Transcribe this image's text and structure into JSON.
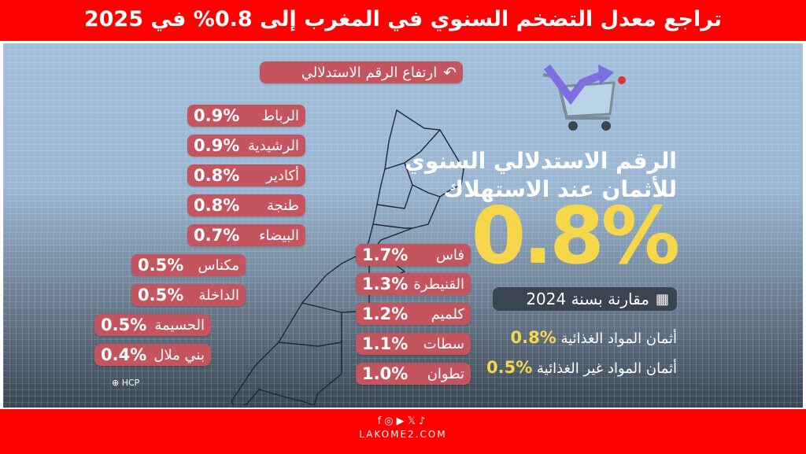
{
  "header": {
    "title": "تراجع معدل التضخم السنوي في المغرب إلى 0.8% في 2025"
  },
  "rise_label": "ارتفاع الرقم الاستدلالي",
  "cities_left": [
    {
      "name": "الرباط",
      "value": "0.9%"
    },
    {
      "name": "الرشيدية",
      "value": "0.9%"
    },
    {
      "name": "أكادير",
      "value": "0.8%"
    },
    {
      "name": "طنجة",
      "value": "0.8%"
    },
    {
      "name": "البيضاء",
      "value": "0.7%"
    },
    {
      "name": "مكناس",
      "value": "0.5%"
    },
    {
      "name": "الداخلة",
      "value": "0.5%"
    },
    {
      "name": "الحسيمة",
      "value": "0.5%"
    },
    {
      "name": "بني ملال",
      "value": "0.4%"
    }
  ],
  "cities_right": [
    {
      "name": "فاس",
      "value": "1.7%"
    },
    {
      "name": "القنيطرة",
      "value": "1.3%"
    },
    {
      "name": "كلميم",
      "value": "1.2%"
    },
    {
      "name": "سطات",
      "value": "1.1%"
    },
    {
      "name": "تطوان",
      "value": "1.0%"
    }
  ],
  "summary": {
    "title_line1": "الرقم الاستدلالي السنوي",
    "title_line2": "للأثمان عند الاستهلاك",
    "headline_value": "0.8%",
    "compare_label": "مقارنة بسنة 2024",
    "food_label": "أثمان المواد الغذائية",
    "food_value": "0.8%",
    "nonfood_label": "أثمان المواد غير الغذائية",
    "nonfood_value": "0.5%"
  },
  "source": "HCP",
  "footer": {
    "site": "LAKOME2.COM"
  },
  "colors": {
    "red": "#fe0000",
    "pill": "#c4555f",
    "yellow": "#f6d64a"
  }
}
